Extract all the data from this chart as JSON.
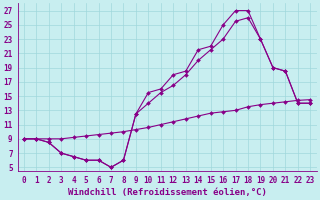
{
  "background_color": "#c8eef0",
  "line_color": "#880088",
  "grid_color": "#a0d8dc",
  "xlabel": "Windchill (Refroidissement éolien,°C)",
  "xlim": [
    -0.5,
    23.5
  ],
  "ylim": [
    4.5,
    28
  ],
  "yticks": [
    5,
    7,
    9,
    11,
    13,
    15,
    17,
    19,
    21,
    23,
    25,
    27
  ],
  "xticks": [
    0,
    1,
    2,
    3,
    4,
    5,
    6,
    7,
    8,
    9,
    10,
    11,
    12,
    13,
    14,
    15,
    16,
    17,
    18,
    19,
    20,
    21,
    22,
    23
  ],
  "line1_x": [
    0,
    1,
    2,
    3,
    4,
    5,
    6,
    7,
    8,
    9,
    10,
    11,
    12,
    13,
    14,
    15,
    16,
    17,
    18,
    19,
    20,
    21,
    22,
    23
  ],
  "line1_y": [
    9,
    9,
    8.5,
    7,
    6.5,
    6,
    6,
    5,
    6,
    12.5,
    15.5,
    16,
    18,
    18.5,
    21.5,
    22,
    25,
    27,
    27,
    23,
    19,
    18.5,
    14,
    14
  ],
  "line2_x": [
    0,
    1,
    2,
    3,
    4,
    5,
    6,
    7,
    8,
    9,
    10,
    11,
    12,
    13,
    14,
    15,
    16,
    17,
    18,
    19,
    20,
    21,
    22,
    23
  ],
  "line2_y": [
    9,
    9,
    8.5,
    7,
    6.5,
    6,
    6,
    5,
    6,
    12.5,
    14,
    15.5,
    16.5,
    18,
    20,
    21.5,
    23,
    25.5,
    26,
    23,
    19,
    18.5,
    14,
    14
  ],
  "line3_x": [
    0,
    1,
    2,
    3,
    4,
    5,
    6,
    7,
    8,
    9,
    10,
    11,
    12,
    13,
    14,
    15,
    16,
    17,
    18,
    19,
    20,
    21,
    22,
    23
  ],
  "line3_y": [
    9,
    9,
    9,
    9,
    9.2,
    9.4,
    9.6,
    9.8,
    10,
    10.3,
    10.6,
    11,
    11.4,
    11.8,
    12.2,
    12.6,
    12.8,
    13,
    13.5,
    13.8,
    14,
    14.2,
    14.4,
    14.5
  ],
  "marker": "D",
  "markersize": 2.0,
  "linewidth": 0.8,
  "xlabel_fontsize": 6.5,
  "tick_fontsize": 5.5
}
